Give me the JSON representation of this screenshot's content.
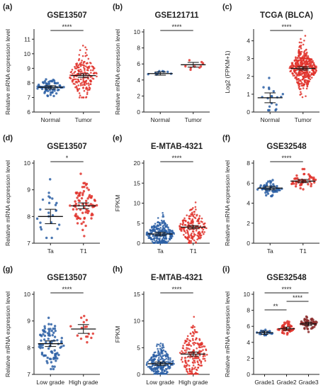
{
  "chart_data": [
    {
      "panel_label": "(a)",
      "type": "scatter",
      "title": "GSE13507",
      "ylabel": "Relative mRNA expression level",
      "categories": [
        "Normal",
        "Tumor"
      ],
      "yticks": [
        6,
        7,
        8,
        9,
        10,
        11
      ],
      "ylim": [
        6,
        11.5
      ],
      "groups": [
        {
          "name": "Normal",
          "color": "#2b5fa5",
          "n": 68,
          "mean": 7.7,
          "sd": 0.3,
          "min": 7.1,
          "max": 9.0
        },
        {
          "name": "Tumor",
          "color": "#e0322b",
          "n": 188,
          "mean": 8.5,
          "sd": 0.75,
          "min": 7.0,
          "max": 11.0
        }
      ],
      "comparisons": [
        {
          "from": 0,
          "to": 1,
          "label": "****"
        }
      ]
    },
    {
      "panel_label": "(b)",
      "type": "scatter",
      "title": "GSE121711",
      "ylabel": "Relative mRNA expression level",
      "categories": [
        "Normal",
        "Tumor"
      ],
      "yticks": [
        0,
        2,
        4,
        6,
        8,
        10
      ],
      "ylim": [
        0,
        10
      ],
      "groups": [
        {
          "name": "Normal",
          "color": "#2b5fa5",
          "n": 10,
          "mean": 4.8,
          "sd": 0.2,
          "min": 4.5,
          "max": 5.1
        },
        {
          "name": "Tumor",
          "color": "#e0322b",
          "n": 9,
          "mean": 5.9,
          "sd": 0.4,
          "min": 5.2,
          "max": 6.6
        }
      ],
      "comparisons": [
        {
          "from": 0,
          "to": 1,
          "label": "****"
        }
      ]
    },
    {
      "panel_label": "(c)",
      "type": "scatter",
      "title": "TCGA (BLCA)",
      "ylabel": "Log2 (FPKM+1)",
      "categories": [
        "Normal",
        "Tumor"
      ],
      "yticks": [
        0,
        1,
        2,
        3,
        4
      ],
      "ylim": [
        0,
        4.5
      ],
      "groups": [
        {
          "name": "Normal",
          "color": "#2b5fa5",
          "n": 19,
          "mean": 0.8,
          "sd": 0.55,
          "min": 0.1,
          "max": 2.3
        },
        {
          "name": "Tumor",
          "color": "#e0322b",
          "n": 414,
          "mean": 2.45,
          "sd": 0.55,
          "min": 0.5,
          "max": 4.3
        }
      ],
      "comparisons": [
        {
          "from": 0,
          "to": 1,
          "label": "****"
        }
      ]
    },
    {
      "panel_label": "(d)",
      "type": "scatter",
      "title": "GSE13507",
      "ylabel": "Relative mRNA expression level",
      "categories": [
        "Ta",
        "T1"
      ],
      "yticks": [
        7,
        8,
        9,
        10
      ],
      "ylim": [
        7,
        10
      ],
      "groups": [
        {
          "name": "Ta",
          "color": "#2b5fa5",
          "n": 24,
          "mean": 8.0,
          "sd": 0.6,
          "min": 7.2,
          "max": 9.6
        },
        {
          "name": "T1",
          "color": "#e0322b",
          "n": 80,
          "mean": 8.4,
          "sd": 0.45,
          "min": 7.2,
          "max": 9.6
        }
      ],
      "comparisons": [
        {
          "from": 0,
          "to": 1,
          "label": "*"
        }
      ]
    },
    {
      "panel_label": "(e)",
      "type": "scatter",
      "title": "E-MTAB-4321",
      "ylabel": "FPKM",
      "categories": [
        "Ta",
        "T1"
      ],
      "yticks": [
        0,
        5,
        10,
        15,
        20
      ],
      "ylim": [
        0,
        20
      ],
      "groups": [
        {
          "name": "Ta",
          "color": "#2b5fa5",
          "n": 280,
          "mean": 2.3,
          "sd": 1.8,
          "min": 0.1,
          "max": 13.0
        },
        {
          "name": "T1",
          "color": "#e0322b",
          "n": 190,
          "mean": 4.0,
          "sd": 2.3,
          "min": 0.1,
          "max": 12.5
        }
      ],
      "comparisons": [
        {
          "from": 0,
          "to": 1,
          "label": "****"
        }
      ]
    },
    {
      "panel_label": "(f)",
      "type": "scatter",
      "title": "GSE32548",
      "ylabel": "Relative mRNA expression level",
      "categories": [
        "Ta",
        "T1"
      ],
      "yticks": [
        0,
        2,
        4,
        6,
        8
      ],
      "ylim": [
        0,
        8
      ],
      "groups": [
        {
          "name": "Ta",
          "color": "#2b5fa5",
          "n": 55,
          "mean": 5.5,
          "sd": 0.35,
          "min": 4.7,
          "max": 6.3
        },
        {
          "name": "T1",
          "color": "#e0322b",
          "n": 48,
          "mean": 6.2,
          "sd": 0.5,
          "min": 5.0,
          "max": 7.4
        }
      ],
      "comparisons": [
        {
          "from": 0,
          "to": 1,
          "label": "****"
        }
      ]
    },
    {
      "panel_label": "(g)",
      "type": "scatter",
      "title": "GSE13507",
      "ylabel": "Relative mRNA expression level",
      "categories": [
        "Low grade",
        "High grade"
      ],
      "yticks": [
        7,
        8,
        9,
        10
      ],
      "ylim": [
        7,
        10
      ],
      "groups": [
        {
          "name": "Low grade",
          "color": "#2b5fa5",
          "n": 88,
          "mean": 8.15,
          "sd": 0.45,
          "min": 7.2,
          "max": 9.7
        },
        {
          "name": "High grade",
          "color": "#e0322b",
          "n": 16,
          "mean": 8.7,
          "sd": 0.3,
          "min": 8.2,
          "max": 9.3
        }
      ],
      "comparisons": [
        {
          "from": 0,
          "to": 1,
          "label": "****"
        }
      ]
    },
    {
      "panel_label": "(h)",
      "type": "scatter",
      "title": "E-MTAB-4321",
      "ylabel": "FPKM",
      "categories": [
        "Low grade",
        "High grade"
      ],
      "yticks": [
        0,
        5,
        10,
        15
      ],
      "ylim": [
        0,
        15
      ],
      "groups": [
        {
          "name": "Low grade",
          "color": "#2b5fa5",
          "n": 260,
          "mean": 2.0,
          "sd": 1.5,
          "min": 0.1,
          "max": 8.2
        },
        {
          "name": "High grade",
          "color": "#e0322b",
          "n": 200,
          "mean": 3.8,
          "sd": 2.4,
          "min": 0.1,
          "max": 12.0
        }
      ],
      "comparisons": [
        {
          "from": 0,
          "to": 1,
          "label": "****"
        }
      ]
    },
    {
      "panel_label": "(i)",
      "type": "scatter",
      "title": "GSE32548",
      "ylabel": "Relative mRNA expression level",
      "categories": [
        "Grade1",
        "Grade2",
        "Grade3"
      ],
      "yticks": [
        0,
        2,
        4,
        6,
        8,
        10
      ],
      "ylim": [
        0,
        10
      ],
      "groups": [
        {
          "name": "Grade1",
          "color": "#2b5fa5",
          "n": 22,
          "mean": 5.2,
          "sd": 0.2,
          "min": 4.8,
          "max": 5.6
        },
        {
          "name": "Grade2",
          "color": "#e0322b",
          "n": 48,
          "mean": 5.7,
          "sd": 0.4,
          "min": 4.9,
          "max": 6.8
        },
        {
          "name": "Grade3",
          "color": "#8b2a2a",
          "n": 55,
          "mean": 6.3,
          "sd": 0.45,
          "min": 5.3,
          "max": 7.4
        }
      ],
      "comparisons": [
        {
          "from": 0,
          "to": 1,
          "label": "**"
        },
        {
          "from": 1,
          "to": 2,
          "label": "****"
        },
        {
          "from": 0,
          "to": 2,
          "label": "****"
        }
      ]
    }
  ]
}
